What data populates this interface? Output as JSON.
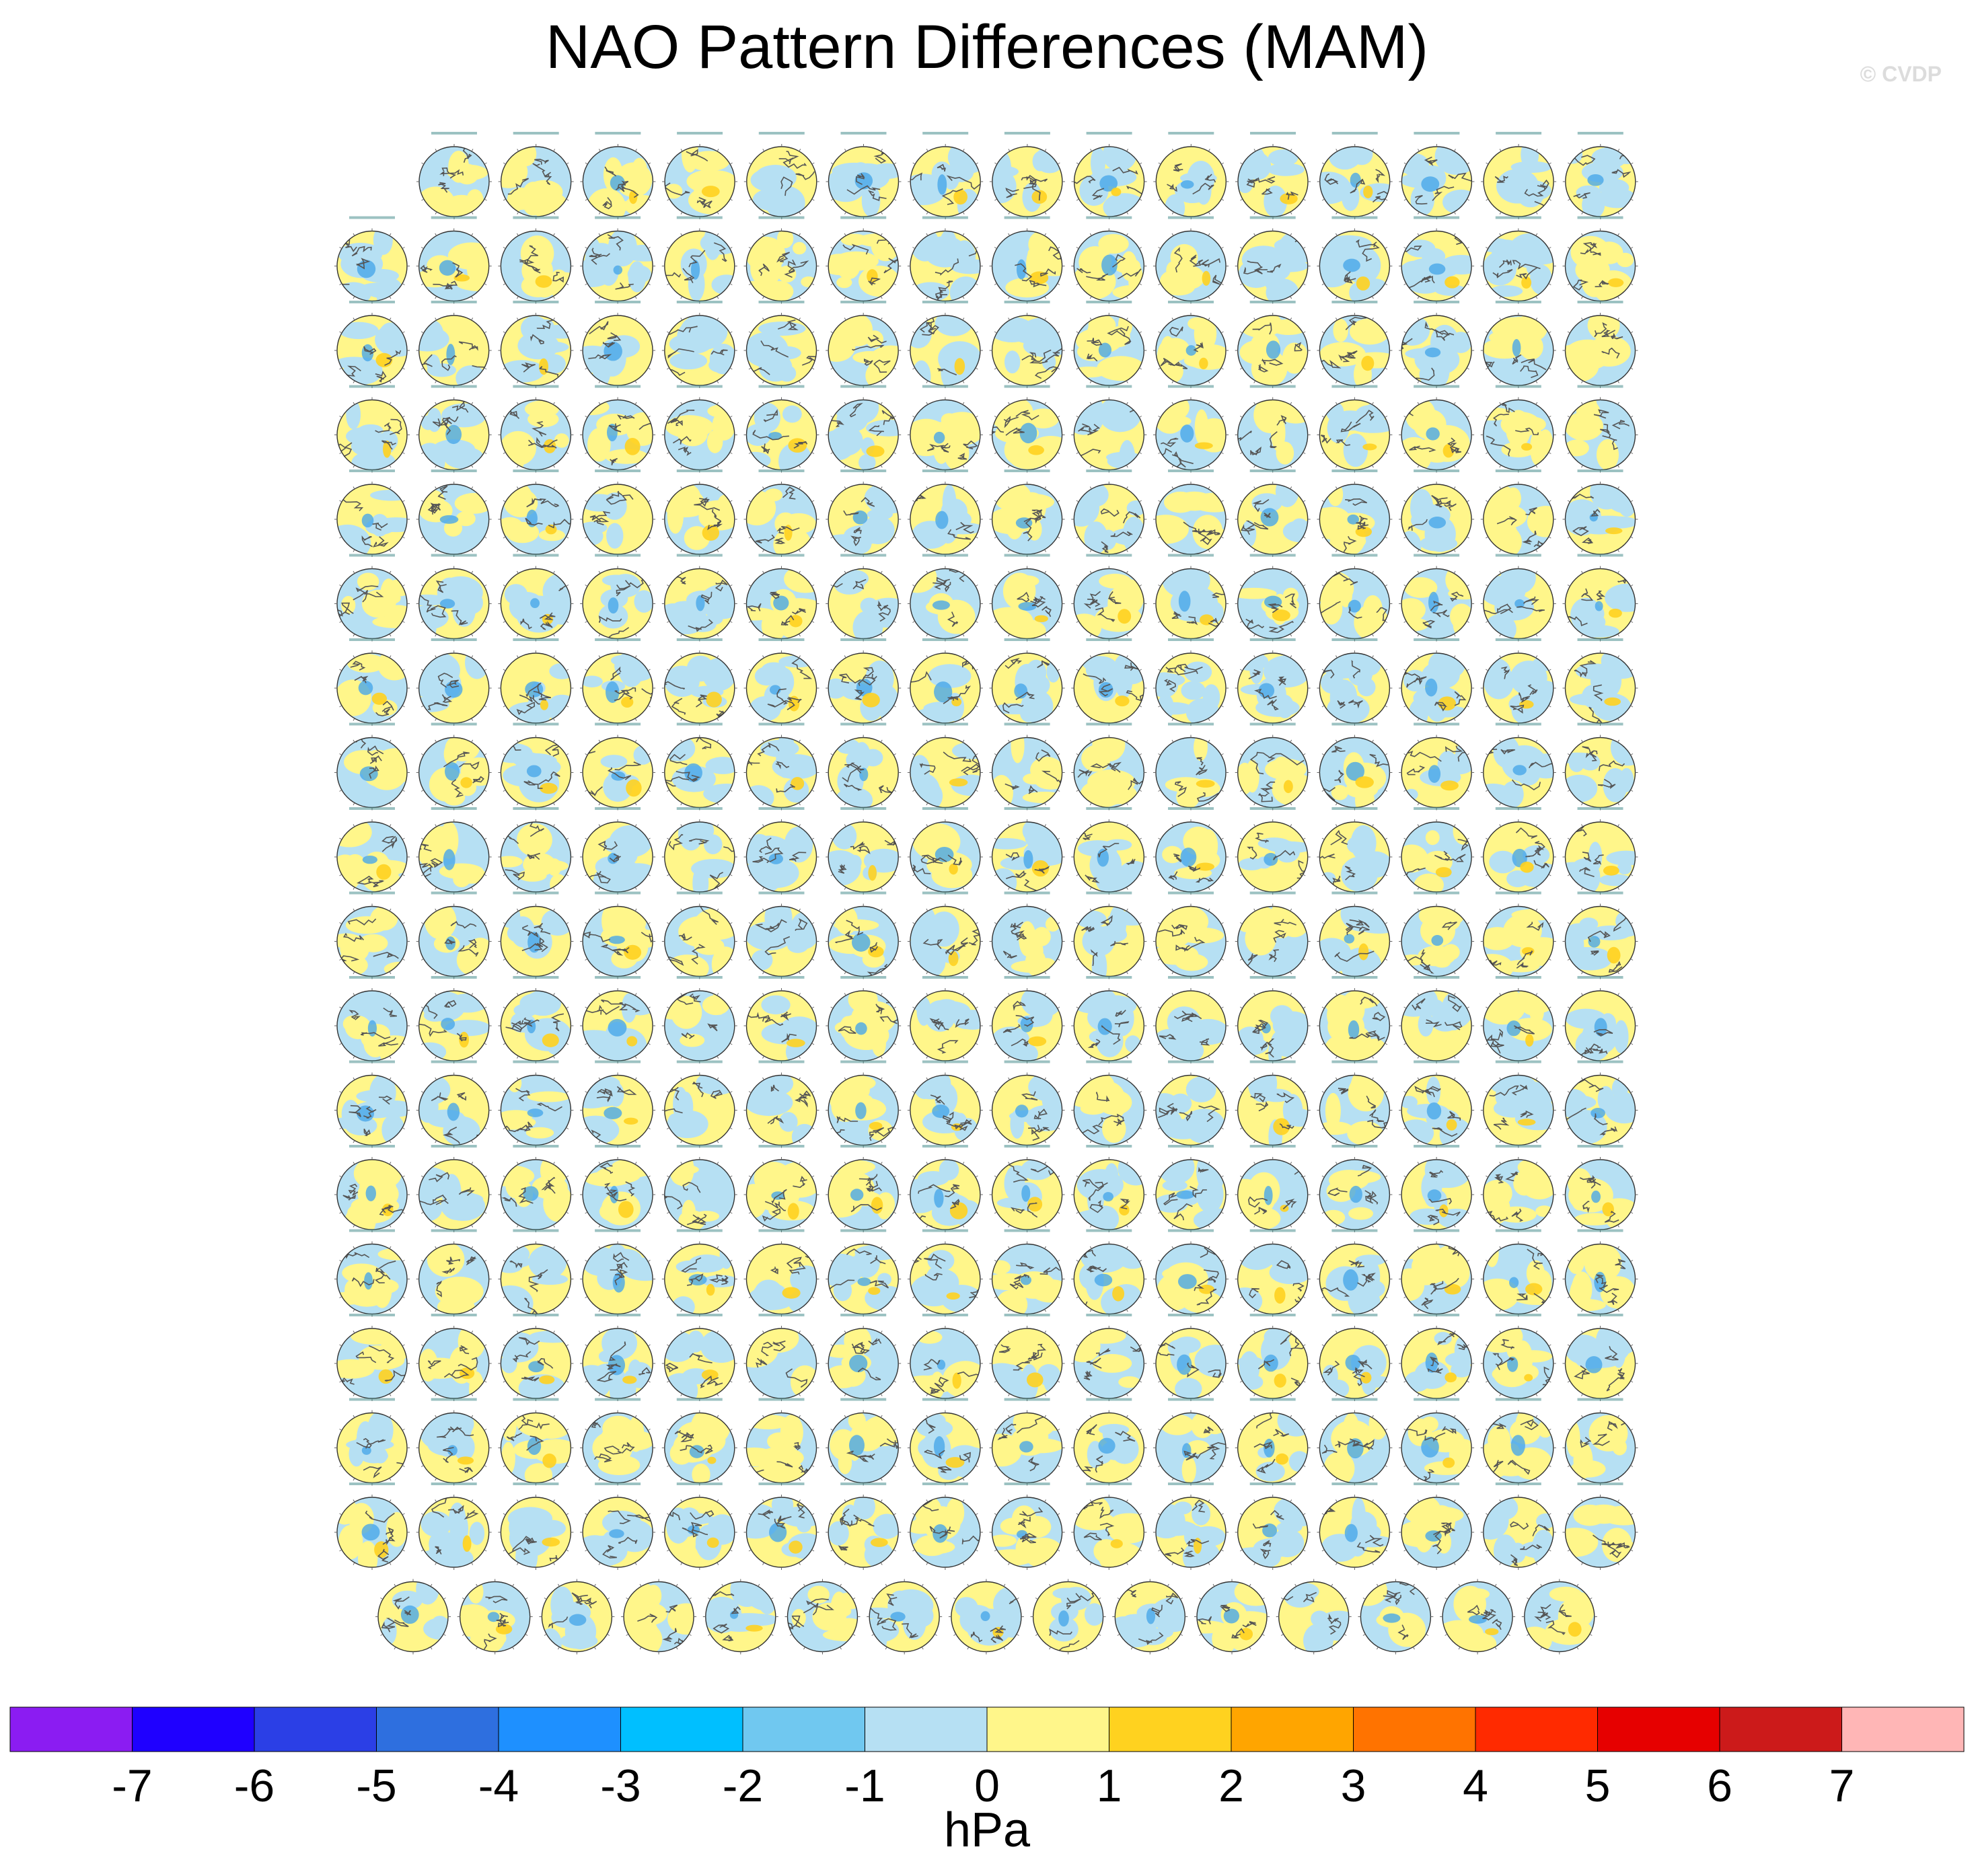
{
  "title": "NAO Pattern Differences (MAM)",
  "credit": "© CVDP",
  "chart_data": {
    "type": "heatmap",
    "title": "NAO Pattern Differences (MAM)",
    "description_note": "Grid of polar stereographic difference maps, one per model simulation",
    "panel_rows": [
      15,
      16,
      16,
      16,
      16,
      16,
      16,
      16,
      16,
      16,
      16,
      16,
      16,
      16,
      16,
      16,
      16,
      15
    ],
    "colorbar": {
      "units": "hPa",
      "tick_labels": [
        "-7",
        "-6",
        "-5",
        "-4",
        "-3",
        "-2",
        "-1",
        "0",
        "1",
        "2",
        "3",
        "4",
        "5",
        "6",
        "7"
      ],
      "levels": [
        -7,
        -6,
        -5,
        -4,
        -3,
        -2,
        -1,
        0,
        1,
        2,
        3,
        4,
        5,
        6,
        7
      ],
      "colors": [
        "#8b1cf2",
        "#1f00ff",
        "#2b3fe6",
        "#2e6fdf",
        "#1e90ff",
        "#00bfff",
        "#70c8f0",
        "#b6e0f3",
        "#fff68a",
        "#ffd21f",
        "#ffa500",
        "#ff7300",
        "#ff2a00",
        "#e60000",
        "#cc1a1a",
        "#ffb6b6"
      ]
    },
    "palette": {
      "ocean_negative": "#b6e0f3",
      "positive": "#fff68a",
      "strong_positive": "#ffd21f",
      "strong_negative": "#4aa8e8",
      "coast": "#555555",
      "panel_title": "#4a8f8f"
    }
  }
}
